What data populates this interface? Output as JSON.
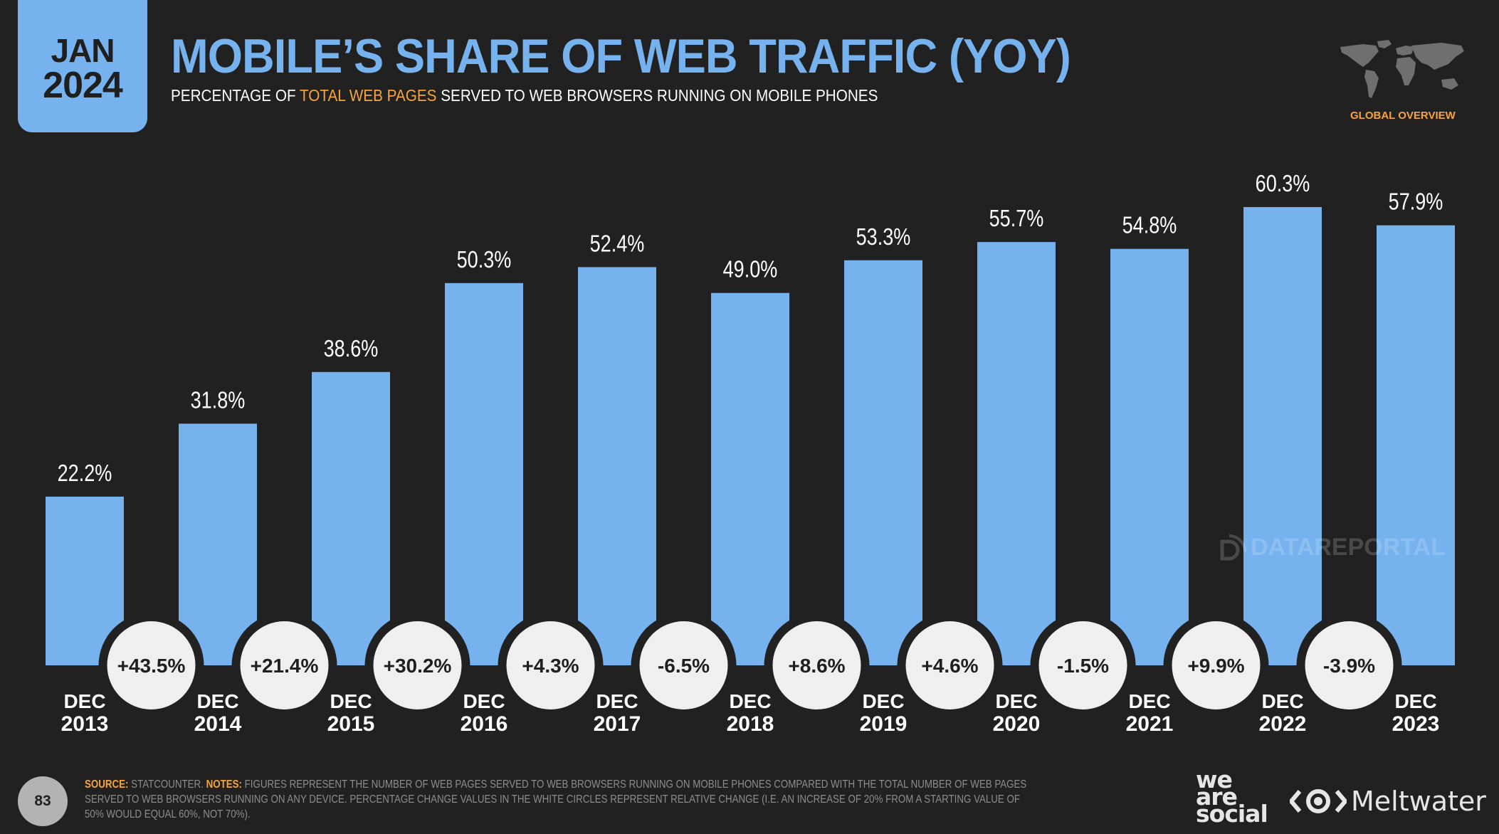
{
  "header": {
    "date_month": "JAN",
    "date_year": "2024",
    "title": "MOBILE’S SHARE OF WEB TRAFFIC (YOY)",
    "subtitle_pre": "PERCENTAGE OF ",
    "subtitle_highlight": "TOTAL WEB PAGES",
    "subtitle_post": " SERVED TO WEB BROWSERS RUNNING ON MOBILE PHONES",
    "region_label": "GLOBAL OVERVIEW",
    "region_icon": "world-map-icon"
  },
  "colors": {
    "background": "#212121",
    "accent_blue": "#75b2ee",
    "accent_orange": "#f7a43a",
    "circle_fill": "#efefef",
    "text_dark": "#1f1f1f"
  },
  "watermark": "DATAREPORTAL",
  "chart_data": {
    "type": "bar",
    "title": "MOBILE’S SHARE OF WEB TRAFFIC (YOY)",
    "subtitle": "PERCENTAGE OF TOTAL WEB PAGES SERVED TO WEB BROWSERS RUNNING ON MOBILE PHONES",
    "xlabel": "",
    "ylabel": "",
    "ylim": [
      0,
      65
    ],
    "grid": false,
    "legend": "none",
    "categories": [
      {
        "month": "DEC",
        "year": "2013"
      },
      {
        "month": "DEC",
        "year": "2014"
      },
      {
        "month": "DEC",
        "year": "2015"
      },
      {
        "month": "DEC",
        "year": "2016"
      },
      {
        "month": "DEC",
        "year": "2017"
      },
      {
        "month": "DEC",
        "year": "2018"
      },
      {
        "month": "DEC",
        "year": "2019"
      },
      {
        "month": "DEC",
        "year": "2020"
      },
      {
        "month": "DEC",
        "year": "2021"
      },
      {
        "month": "DEC",
        "year": "2022"
      },
      {
        "month": "DEC",
        "year": "2023"
      }
    ],
    "values": [
      22.2,
      31.8,
      38.6,
      50.3,
      52.4,
      49.0,
      53.3,
      55.7,
      54.8,
      60.3,
      57.9
    ],
    "value_labels": [
      "22.2%",
      "31.8%",
      "38.6%",
      "50.3%",
      "52.4%",
      "49.0%",
      "53.3%",
      "55.7%",
      "54.8%",
      "60.3%",
      "57.9%"
    ],
    "yoy_change": [
      43.5,
      21.4,
      30.2,
      4.3,
      -6.5,
      8.6,
      4.6,
      -1.5,
      9.9,
      -3.9
    ],
    "yoy_labels": [
      "+43.5%",
      "+21.4%",
      "+30.2%",
      "+4.3%",
      "-6.5%",
      "+8.6%",
      "+4.6%",
      "-1.5%",
      "+9.9%",
      "-3.9%"
    ]
  },
  "footer": {
    "page_number": "83",
    "source_label": "SOURCE:",
    "source_text": " STATCOUNTER. ",
    "notes_label": "NOTES:",
    "notes_text": " FIGURES REPRESENT THE NUMBER OF WEB PAGES SERVED TO WEB BROWSERS RUNNING ON MOBILE PHONES COMPARED WITH THE TOTAL NUMBER OF WEB PAGES SERVED TO WEB BROWSERS RUNNING ON ANY DEVICE. PERCENTAGE CHANGE VALUES IN THE WHITE CIRCLES REPRESENT RELATIVE CHANGE (I.E. AN INCREASE OF 20% FROM A STARTING VALUE OF 50% WOULD EQUAL 60%, NOT 70%).",
    "logo_we_are_social": [
      "we",
      "are",
      "social"
    ],
    "logo_meltwater": "Meltwater"
  }
}
